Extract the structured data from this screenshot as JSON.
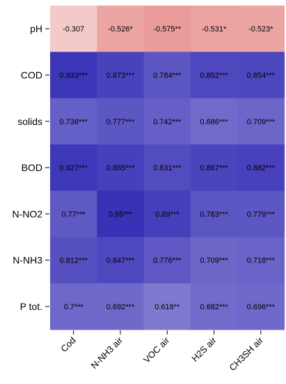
{
  "chart_data": {
    "type": "heatmap",
    "title": "",
    "xlabel": "",
    "ylabel": "",
    "columns": [
      "Cod",
      "N-NH3 air",
      "VOC air",
      "H2S air",
      "CH3SH air"
    ],
    "rows": [
      "pH",
      "COD",
      "solids",
      "BOD",
      "N-NO2",
      "N-NH3",
      "P tot."
    ],
    "values": [
      [
        -0.307,
        -0.526,
        -0.575,
        -0.531,
        -0.523
      ],
      [
        0.933,
        0.873,
        0.784,
        0.852,
        0.854
      ],
      [
        0.738,
        0.777,
        0.742,
        0.686,
        0.709
      ],
      [
        0.927,
        0.885,
        0.831,
        0.867,
        0.882
      ],
      [
        0.77,
        0.95,
        0.89,
        0.783,
        0.779
      ],
      [
        0.812,
        0.847,
        0.776,
        0.709,
        0.718
      ],
      [
        0.7,
        0.692,
        0.618,
        0.682,
        0.696
      ]
    ],
    "labels": [
      [
        "-0.307",
        "-0.526*",
        "-0.575**",
        "-0.531*",
        "-0.523*"
      ],
      [
        "0.933***",
        "0.873***",
        "0.784***",
        "0.852***",
        "0.854***"
      ],
      [
        "0.738***",
        "0.777***",
        "0.742***",
        "0.686***",
        "0.709***"
      ],
      [
        "0.927***",
        "0.885***",
        "0.831***",
        "0.867***",
        "0.882***"
      ],
      [
        "0.77***",
        "0.95***",
        "0.89***",
        "0.783***",
        "0.779***"
      ],
      [
        "0.812***",
        "0.847***",
        "0.776***",
        "0.709***",
        "0.718***"
      ],
      [
        "0.7***",
        "0.692***",
        "0.618**",
        "0.682***",
        "0.696***"
      ]
    ],
    "colors": {
      "negative": "#d9534f",
      "neutral": "#ffffff",
      "positive": "#2f27b3"
    },
    "legend": "none"
  }
}
